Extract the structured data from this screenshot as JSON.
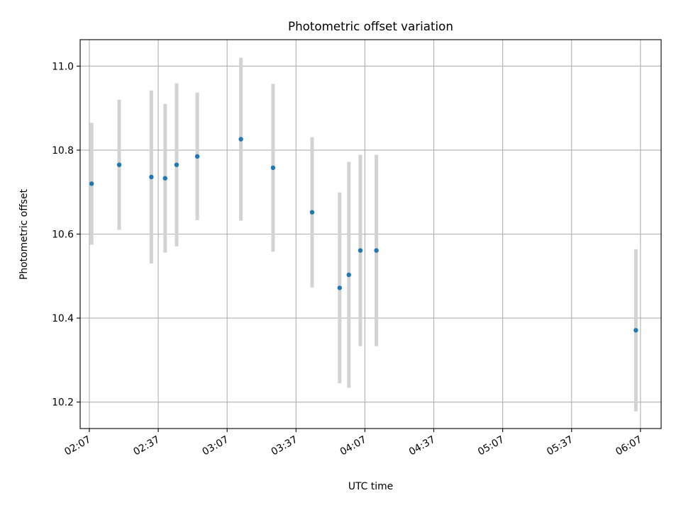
{
  "chart_data": {
    "type": "scatter",
    "title": "Photometric offset variation",
    "xlabel": "UTC time",
    "ylabel": "Photometric offset",
    "x_axis_kind": "time",
    "xlim": [
      "02:03",
      "06:16"
    ],
    "ylim": [
      10.137,
      11.063
    ],
    "grid": true,
    "x_ticks": [
      "02:07",
      "02:37",
      "03:07",
      "03:37",
      "04:07",
      "04:37",
      "05:07",
      "05:37",
      "06:07"
    ],
    "y_ticks": [
      10.2,
      10.4,
      10.6,
      10.8,
      11.0
    ],
    "y_tick_labels": [
      "10.2",
      "10.4",
      "10.6",
      "10.8",
      "11.0"
    ],
    "colors": {
      "points": "#1f77b4",
      "error_bars": "#d3d3d3",
      "grid": "#b0b0b0"
    },
    "series": [
      {
        "points": [
          {
            "x": "02:08",
            "y": 10.72,
            "ylow": 10.575,
            "yhigh": 10.865
          },
          {
            "x": "02:20",
            "y": 10.765,
            "ylow": 10.61,
            "yhigh": 10.92
          },
          {
            "x": "02:34",
            "y": 10.736,
            "ylow": 10.53,
            "yhigh": 10.942
          },
          {
            "x": "02:40",
            "y": 10.733,
            "ylow": 10.556,
            "yhigh": 10.91
          },
          {
            "x": "02:45",
            "y": 10.765,
            "ylow": 10.571,
            "yhigh": 10.959
          },
          {
            "x": "02:54",
            "y": 10.785,
            "ylow": 10.633,
            "yhigh": 10.937
          },
          {
            "x": "03:13",
            "y": 10.826,
            "ylow": 10.632,
            "yhigh": 11.02
          },
          {
            "x": "03:27",
            "y": 10.758,
            "ylow": 10.558,
            "yhigh": 10.958
          },
          {
            "x": "03:44",
            "y": 10.652,
            "ylow": 10.473,
            "yhigh": 10.831
          },
          {
            "x": "03:56",
            "y": 10.472,
            "ylow": 10.245,
            "yhigh": 10.699
          },
          {
            "x": "04:00",
            "y": 10.503,
            "ylow": 10.234,
            "yhigh": 10.772
          },
          {
            "x": "04:05",
            "y": 10.561,
            "ylow": 10.333,
            "yhigh": 10.789
          },
          {
            "x": "04:12",
            "y": 10.561,
            "ylow": 10.333,
            "yhigh": 10.789
          },
          {
            "x": "06:05",
            "y": 10.371,
            "ylow": 10.178,
            "yhigh": 10.564
          }
        ]
      }
    ]
  }
}
